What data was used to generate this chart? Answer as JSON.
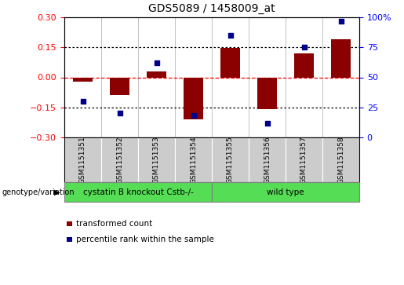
{
  "title": "GDS5089 / 1458009_at",
  "samples": [
    "GSM1151351",
    "GSM1151352",
    "GSM1151353",
    "GSM1151354",
    "GSM1151355",
    "GSM1151356",
    "GSM1151357",
    "GSM1151358"
  ],
  "transformed_count": [
    -0.022,
    -0.09,
    0.03,
    -0.21,
    0.148,
    -0.16,
    0.12,
    0.19
  ],
  "percentile_rank": [
    30,
    20,
    62,
    18,
    85,
    12,
    75,
    97
  ],
  "bar_color": "#8B0000",
  "dot_color": "#00008B",
  "left_ylim": [
    -0.3,
    0.3
  ],
  "right_ylim": [
    0,
    100
  ],
  "left_yticks": [
    -0.3,
    -0.15,
    0,
    0.15,
    0.3
  ],
  "right_yticks": [
    0,
    25,
    50,
    75,
    100
  ],
  "right_yticklabels": [
    "0",
    "25",
    "50",
    "75",
    "100%"
  ],
  "hlines": [
    -0.15,
    0,
    0.15
  ],
  "hline_colors": [
    "black",
    "red",
    "black"
  ],
  "hline_styles": [
    "dotted",
    "dashed",
    "dotted"
  ],
  "group1_label": "cystatin B knockout Cstb-/-",
  "group2_label": "wild type",
  "group1_count": 4,
  "group2_count": 4,
  "group_color": "#55DD55",
  "genotype_label": "genotype/variation",
  "legend_bar_label": "transformed count",
  "legend_dot_label": "percentile rank within the sample",
  "bar_color_r": "#CC0000",
  "dot_color_b": "#0000CC",
  "bar_width": 0.55,
  "xtick_bg": "#CCCCCC"
}
